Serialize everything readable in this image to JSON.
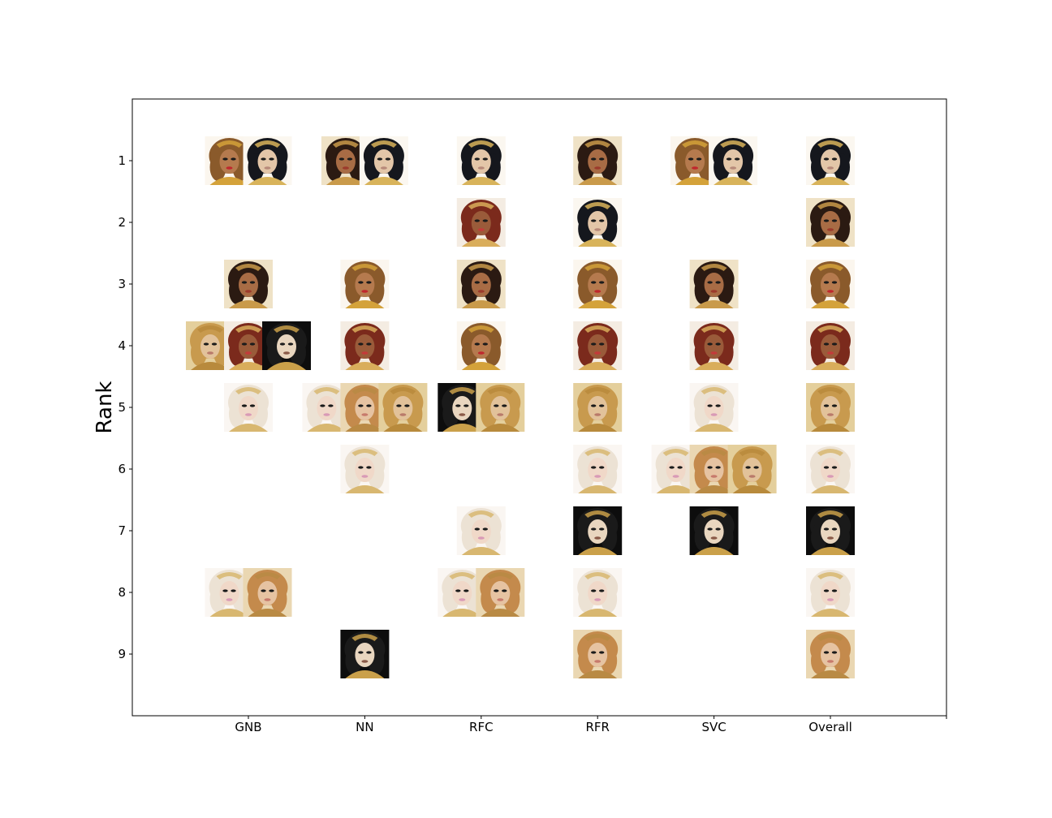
{
  "chart_data": {
    "type": "scatter",
    "marker": "contestant-portrait",
    "xlabel": "",
    "ylabel": "Rank",
    "categories": [
      "GNB",
      "NN",
      "RFC",
      "RFR",
      "SVC",
      "Overall"
    ],
    "y_ticks": [
      "1",
      "2",
      "3",
      "4",
      "5",
      "6",
      "7",
      "8",
      "9"
    ],
    "ylim": [
      0,
      10
    ],
    "y_inverted": true,
    "grid": false,
    "legend": "none",
    "contestants": [
      {
        "id": "A",
        "look": "gold-crown-red-lips"
      },
      {
        "id": "B",
        "look": "black-bouffant"
      },
      {
        "id": "C",
        "look": "gold-floral-headdress"
      },
      {
        "id": "D",
        "look": "auburn-curls"
      },
      {
        "id": "E",
        "look": "honey-blonde-waves"
      },
      {
        "id": "F",
        "look": "black-curly"
      },
      {
        "id": "G",
        "look": "platinum-blonde"
      },
      {
        "id": "H",
        "look": "flower-crown-ringlets"
      }
    ],
    "points": [
      {
        "x": "GNB",
        "rank": 1,
        "contestants": [
          "A",
          "B"
        ]
      },
      {
        "x": "GNB",
        "rank": 3,
        "contestants": [
          "C"
        ]
      },
      {
        "x": "GNB",
        "rank": 4,
        "contestants": [
          "E",
          "D",
          "F"
        ]
      },
      {
        "x": "GNB",
        "rank": 5,
        "contestants": [
          "G"
        ]
      },
      {
        "x": "GNB",
        "rank": 8,
        "contestants": [
          "G",
          "H"
        ]
      },
      {
        "x": "NN",
        "rank": 1,
        "contestants": [
          "C",
          "B"
        ]
      },
      {
        "x": "NN",
        "rank": 3,
        "contestants": [
          "A"
        ]
      },
      {
        "x": "NN",
        "rank": 4,
        "contestants": [
          "D"
        ]
      },
      {
        "x": "NN",
        "rank": 5,
        "contestants": [
          "G",
          "H",
          "E"
        ]
      },
      {
        "x": "NN",
        "rank": 6,
        "contestants": [
          "G"
        ]
      },
      {
        "x": "NN",
        "rank": 9,
        "contestants": [
          "F"
        ]
      },
      {
        "x": "RFC",
        "rank": 1,
        "contestants": [
          "B"
        ]
      },
      {
        "x": "RFC",
        "rank": 2,
        "contestants": [
          "D"
        ]
      },
      {
        "x": "RFC",
        "rank": 3,
        "contestants": [
          "C"
        ]
      },
      {
        "x": "RFC",
        "rank": 4,
        "contestants": [
          "A"
        ]
      },
      {
        "x": "RFC",
        "rank": 5,
        "contestants": [
          "F",
          "E"
        ]
      },
      {
        "x": "RFC",
        "rank": 7,
        "contestants": [
          "G"
        ]
      },
      {
        "x": "RFC",
        "rank": 8,
        "contestants": [
          "G",
          "H"
        ]
      },
      {
        "x": "RFR",
        "rank": 1,
        "contestants": [
          "C"
        ]
      },
      {
        "x": "RFR",
        "rank": 2,
        "contestants": [
          "B"
        ]
      },
      {
        "x": "RFR",
        "rank": 3,
        "contestants": [
          "A"
        ]
      },
      {
        "x": "RFR",
        "rank": 4,
        "contestants": [
          "D"
        ]
      },
      {
        "x": "RFR",
        "rank": 5,
        "contestants": [
          "E"
        ]
      },
      {
        "x": "RFR",
        "rank": 6,
        "contestants": [
          "G"
        ]
      },
      {
        "x": "RFR",
        "rank": 7,
        "contestants": [
          "F"
        ]
      },
      {
        "x": "RFR",
        "rank": 8,
        "contestants": [
          "G"
        ]
      },
      {
        "x": "RFR",
        "rank": 9,
        "contestants": [
          "H"
        ]
      },
      {
        "x": "SVC",
        "rank": 1,
        "contestants": [
          "A",
          "B"
        ]
      },
      {
        "x": "SVC",
        "rank": 3,
        "contestants": [
          "C"
        ]
      },
      {
        "x": "SVC",
        "rank": 4,
        "contestants": [
          "D"
        ]
      },
      {
        "x": "SVC",
        "rank": 5,
        "contestants": [
          "G"
        ]
      },
      {
        "x": "SVC",
        "rank": 6,
        "contestants": [
          "G",
          "H",
          "E"
        ]
      },
      {
        "x": "SVC",
        "rank": 7,
        "contestants": [
          "F"
        ]
      },
      {
        "x": "Overall",
        "rank": 1,
        "contestants": [
          "B"
        ]
      },
      {
        "x": "Overall",
        "rank": 2,
        "contestants": [
          "C"
        ]
      },
      {
        "x": "Overall",
        "rank": 3,
        "contestants": [
          "A"
        ]
      },
      {
        "x": "Overall",
        "rank": 4,
        "contestants": [
          "D"
        ]
      },
      {
        "x": "Overall",
        "rank": 5,
        "contestants": [
          "E"
        ]
      },
      {
        "x": "Overall",
        "rank": 6,
        "contestants": [
          "G"
        ]
      },
      {
        "x": "Overall",
        "rank": 7,
        "contestants": [
          "F"
        ]
      },
      {
        "x": "Overall",
        "rank": 8,
        "contestants": [
          "G"
        ]
      },
      {
        "x": "Overall",
        "rank": 9,
        "contestants": [
          "H"
        ]
      }
    ]
  }
}
